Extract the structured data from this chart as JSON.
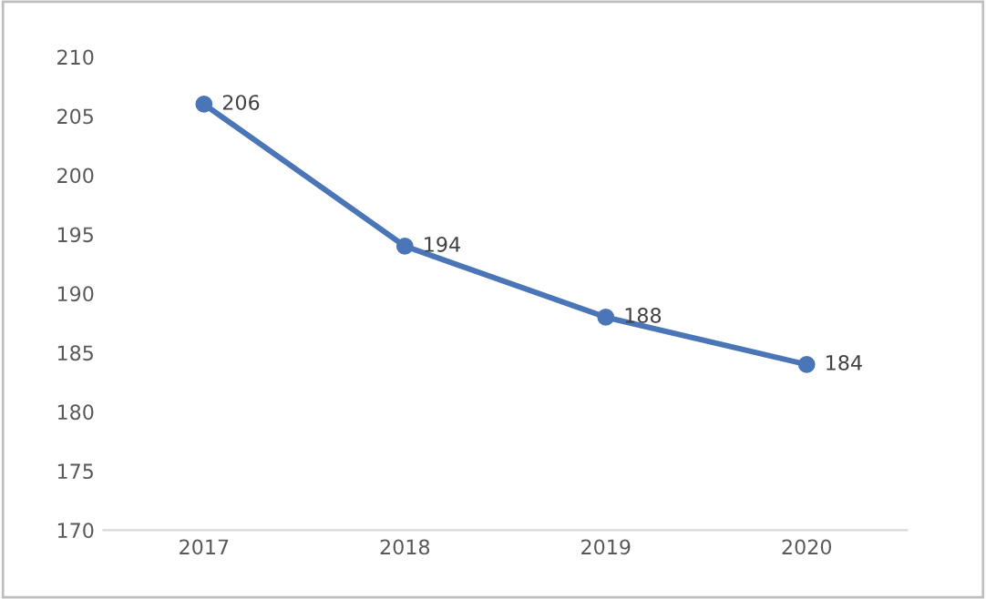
{
  "chart_data": {
    "type": "line",
    "categories": [
      "2017",
      "2018",
      "2019",
      "2020"
    ],
    "series": [
      {
        "color": "#4a76b8",
        "values": [
          206,
          194,
          188,
          184
        ]
      }
    ],
    "ylim": [
      170,
      210
    ],
    "yticks": [
      170,
      175,
      180,
      185,
      190,
      195,
      200,
      205,
      210
    ],
    "marker": "circle",
    "line_style": "solid",
    "data_labels": true,
    "grid": false,
    "legend": false
  }
}
